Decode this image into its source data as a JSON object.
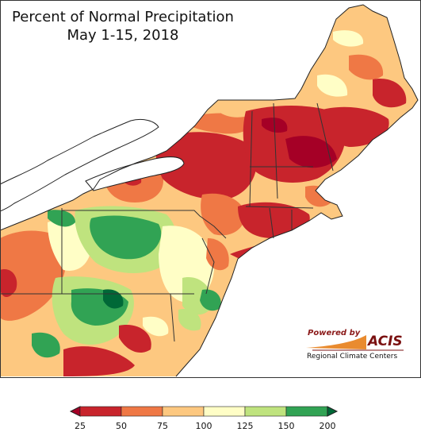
{
  "title": {
    "line1": "Percent of Normal Precipitation",
    "line2": "May 1-15, 2018"
  },
  "branding": {
    "powered_by": "Powered by",
    "name": "ACIS",
    "subtitle": "Regional Climate Centers"
  },
  "legend": {
    "ticks": [
      "25",
      "50",
      "75",
      "100",
      "125",
      "150",
      "200"
    ],
    "classes": [
      {
        "range": "25-50",
        "color": "#c8242c"
      },
      {
        "range": "50-75",
        "color": "#ef7845"
      },
      {
        "range": "75-100",
        "color": "#fdc880"
      },
      {
        "range": "100-125",
        "color": "#fffec6"
      },
      {
        "range": "125-150",
        "color": "#bfe37e"
      },
      {
        "range": "150-200",
        "color": "#31a354"
      }
    ],
    "below_color": "#a50026",
    "above_color": "#006837"
  },
  "colors": {
    "lake": "#ffffff",
    "ocean": "#ffffff",
    "border": "#333333"
  }
}
